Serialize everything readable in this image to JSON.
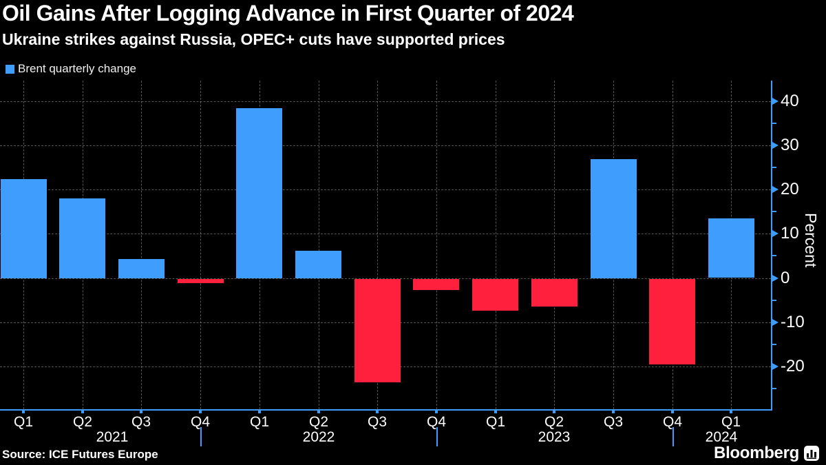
{
  "header": {
    "title": "Oil Gains After Logging Advance in First Quarter of 2024",
    "subtitle": "Ukraine strikes against Russia, OPEC+ cuts have supported prices"
  },
  "legend": {
    "label": "Brent quarterly change",
    "swatch_color": "#3e9dfd"
  },
  "footer": {
    "source": "Source: ICE Futures Europe",
    "brand": "Bloomberg"
  },
  "chart_data": {
    "type": "bar",
    "title": "Oil Gains After Logging Advance in First Quarter of 2024",
    "series_name": "Brent quarterly change",
    "categories": [
      "Q1 2021",
      "Q2 2021",
      "Q3 2021",
      "Q4 2021",
      "Q1 2022",
      "Q2 2022",
      "Q3 2022",
      "Q4 2022",
      "Q1 2023",
      "Q2 2023",
      "Q3 2023",
      "Q4 2023",
      "Q1 2024"
    ],
    "quarter_labels": [
      "Q1",
      "Q2",
      "Q3",
      "Q4",
      "Q1",
      "Q2",
      "Q3",
      "Q4",
      "Q1",
      "Q2",
      "Q3",
      "Q4",
      "Q1"
    ],
    "values": [
      22.4,
      18.0,
      4.3,
      -1.0,
      38.4,
      6.2,
      -23.4,
      -2.5,
      -7.2,
      -6.2,
      26.9,
      -19.3,
      13.4
    ],
    "years": [
      {
        "label": "2021",
        "start_index": 0,
        "end_index": 3
      },
      {
        "label": "2022",
        "start_index": 4,
        "end_index": 7
      },
      {
        "label": "2023",
        "start_index": 8,
        "end_index": 11
      },
      {
        "label": "2024",
        "start_index": 12,
        "end_index": 12
      }
    ],
    "xlabel": "",
    "ylabel": "Percent",
    "ylim": [
      -30.2,
      44.7
    ],
    "y_major_ticks": [
      40,
      30,
      20,
      10,
      0,
      -10,
      -20
    ],
    "y_minor_ticks": [
      35,
      25,
      15,
      5,
      -5,
      -15,
      -25
    ],
    "grid": "dashed-both",
    "legend_position": "top-left",
    "y_axis_side": "right",
    "positive_color": "#3e9dfd",
    "negative_color": "#ff203e",
    "axis_color": "#3e9dfd",
    "grid_color": "#8a8a8a",
    "background_color": "#000000",
    "text_color": "#ffffff"
  }
}
